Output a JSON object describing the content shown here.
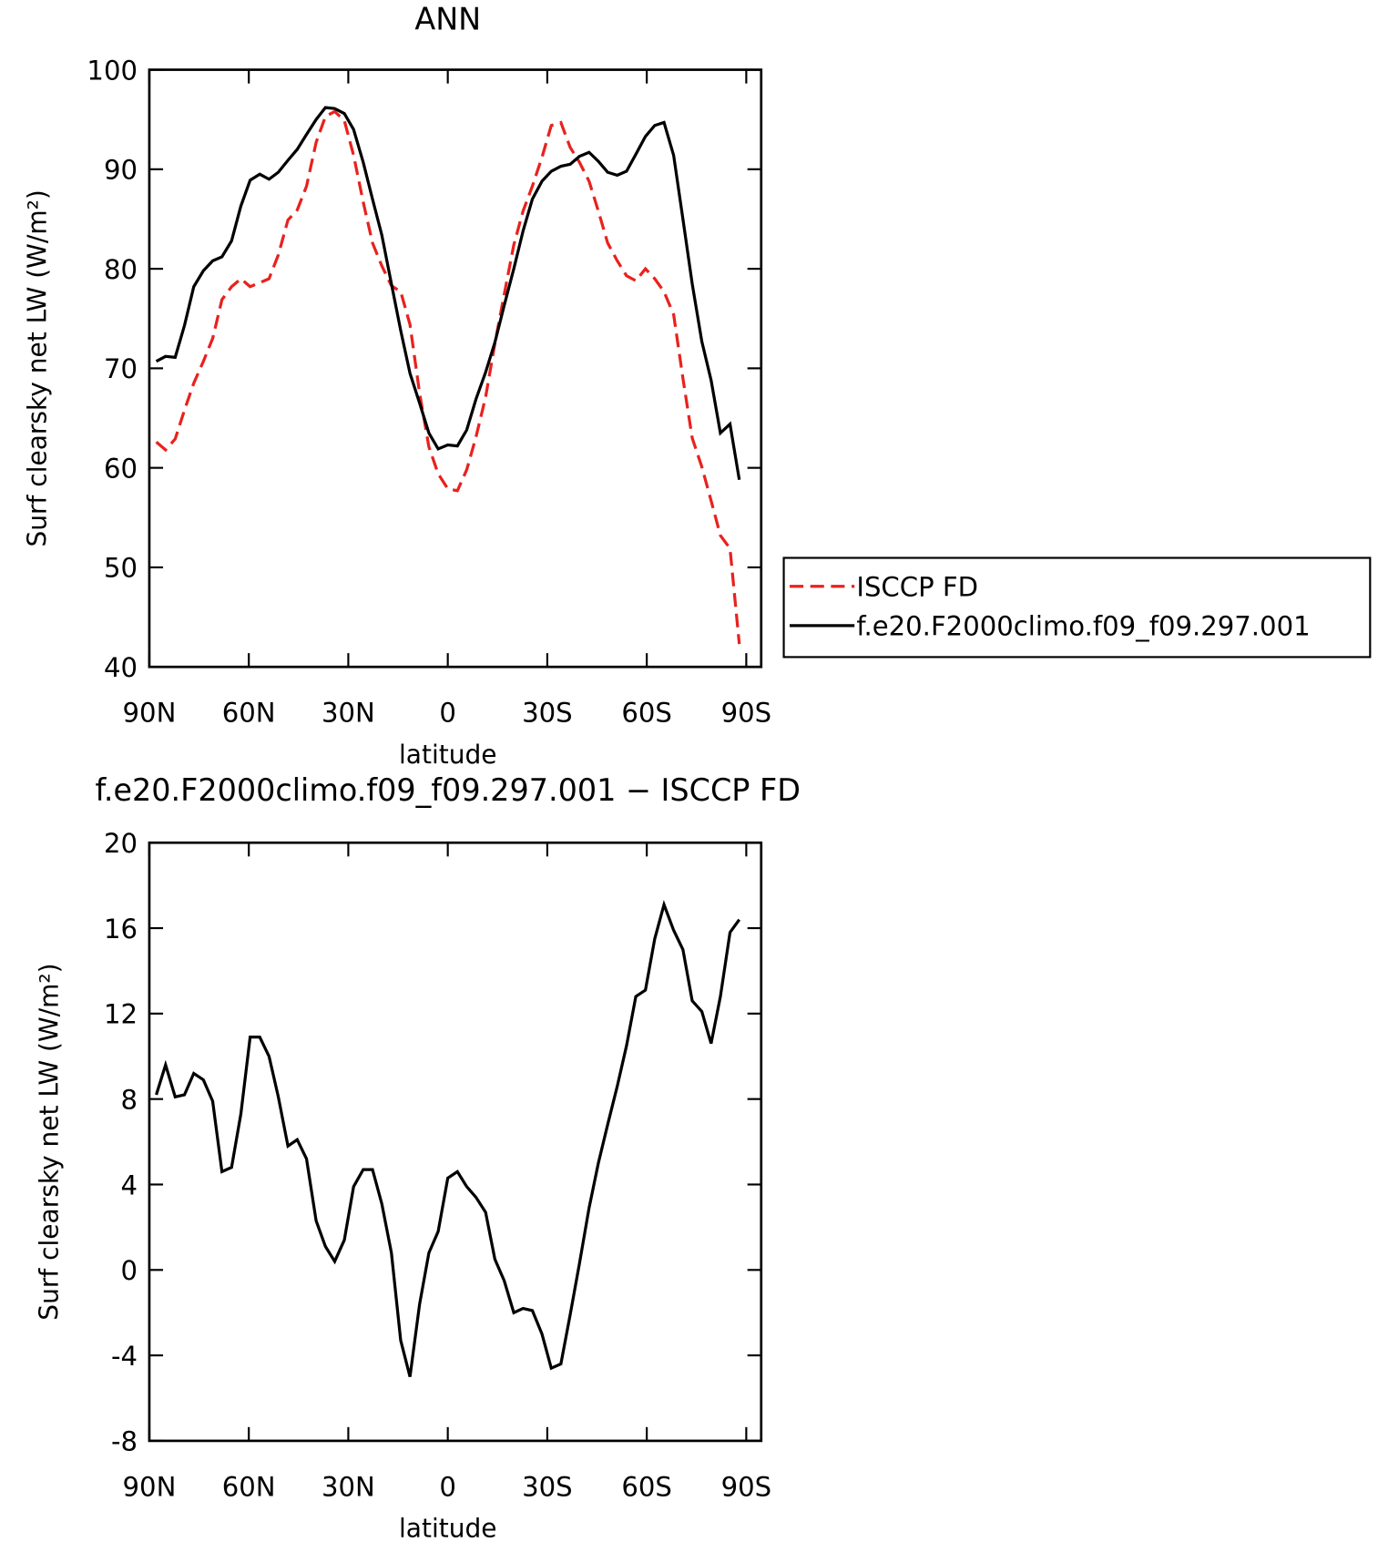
{
  "chart_data": [
    {
      "type": "line",
      "title": "ANN",
      "xlabel": "latitude",
      "ylabel": "Surf clearsky net LW (W/m²)",
      "x": [
        87.9,
        85.1,
        82.2,
        79.4,
        76.6,
        73.7,
        70.9,
        68.1,
        65.2,
        62.4,
        59.6,
        56.7,
        53.9,
        51.1,
        48.2,
        45.4,
        42.6,
        39.7,
        36.9,
        34.1,
        31.2,
        28.4,
        25.5,
        22.7,
        19.9,
        17.0,
        14.2,
        11.4,
        8.5,
        5.7,
        2.9,
        0.0,
        -2.9,
        -5.7,
        -8.5,
        -11.4,
        -14.2,
        -17.0,
        -19.9,
        -22.7,
        -25.5,
        -28.4,
        -31.2,
        -34.1,
        -36.9,
        -39.7,
        -42.6,
        -45.4,
        -48.2,
        -51.1,
        -53.9,
        -56.7,
        -59.6,
        -62.4,
        -65.2,
        -68.1,
        -70.9,
        -73.7,
        -76.6,
        -79.4,
        -82.2,
        -85.1,
        -87.9
      ],
      "series": [
        {
          "name": "ISCCP FD",
          "color": "#e8221e",
          "dash": "dashed",
          "values": [
            62.6,
            61.8,
            62.9,
            65.8,
            68.5,
            70.7,
            73.0,
            76.9,
            78.2,
            79.0,
            78.2,
            78.6,
            79.0,
            81.4,
            84.9,
            85.9,
            88.3,
            92.7,
            95.3,
            95.8,
            94.9,
            91.4,
            86.7,
            82.6,
            80.3,
            78.3,
            77.7,
            74.4,
            67.5,
            62.1,
            59.4,
            57.9,
            57.7,
            59.8,
            63.1,
            67.1,
            72.5,
            77.4,
            82.4,
            85.8,
            88.3,
            91.2,
            94.4,
            94.7,
            92.2,
            90.7,
            88.8,
            85.8,
            82.6,
            80.8,
            79.3,
            78.8,
            80.0,
            79.0,
            77.7,
            75.4,
            69.0,
            63.0,
            60.1,
            56.7,
            53.2,
            51.9,
            42.3
          ]
        },
        {
          "name": "f.e20.F2000climo.f09_f09.297.001",
          "color": "#000000",
          "dash": "solid",
          "values": [
            70.7,
            71.2,
            71.1,
            74.3,
            78.2,
            79.8,
            80.8,
            81.2,
            82.8,
            86.3,
            88.9,
            89.5,
            89.0,
            89.7,
            90.9,
            92.0,
            93.5,
            95.0,
            96.2,
            96.1,
            95.6,
            94.0,
            90.7,
            87.0,
            83.4,
            78.5,
            73.8,
            69.5,
            66.5,
            63.5,
            61.9,
            62.3,
            62.2,
            63.8,
            66.9,
            69.6,
            72.6,
            76.3,
            80.0,
            83.8,
            87.0,
            88.8,
            89.8,
            90.3,
            90.5,
            91.3,
            91.7,
            90.8,
            89.7,
            89.4,
            89.8,
            91.5,
            93.3,
            94.4,
            94.7,
            91.4,
            85.0,
            78.5,
            72.7,
            68.8,
            63.5,
            64.4,
            58.8
          ]
        }
      ],
      "xlim": [
        90,
        -94.5
      ],
      "xticks": [
        {
          "value": 90,
          "label": "90N"
        },
        {
          "value": 60,
          "label": "60N"
        },
        {
          "value": 30,
          "label": "30N"
        },
        0,
        {
          "value": -30,
          "label": "30S"
        },
        {
          "value": -60,
          "label": "60S"
        },
        {
          "value": -90,
          "label": "90S"
        }
      ],
      "ylim": [
        40,
        100
      ],
      "yticks": [
        40,
        50,
        60,
        70,
        80,
        90,
        100
      ],
      "legend": "outside-right"
    },
    {
      "type": "line",
      "title": "f.e20.F2000climo.f09_f09.297.001 − ISCCP FD",
      "xlabel": "latitude",
      "ylabel": "Surf clearsky net LW (W/m²)",
      "x": [
        87.9,
        85.1,
        82.2,
        79.4,
        76.6,
        73.7,
        70.9,
        68.1,
        65.2,
        62.4,
        59.6,
        56.7,
        53.9,
        51.1,
        48.2,
        45.4,
        42.6,
        39.7,
        36.9,
        34.1,
        31.2,
        28.4,
        25.5,
        22.7,
        19.9,
        17.0,
        14.2,
        11.4,
        8.5,
        5.7,
        2.9,
        0.0,
        -2.9,
        -5.7,
        -8.5,
        -11.4,
        -14.2,
        -17.0,
        -19.9,
        -22.7,
        -25.5,
        -28.4,
        -31.2,
        -34.1,
        -36.9,
        -39.7,
        -42.6,
        -45.4,
        -48.2,
        -51.1,
        -53.9,
        -56.7,
        -59.6,
        -62.4,
        -65.2,
        -68.1,
        -70.9,
        -73.7,
        -76.6,
        -79.4,
        -82.2,
        -85.1,
        -87.9
      ],
      "series": [
        {
          "color": "#000000",
          "dash": "solid",
          "values": [
            8.2,
            9.6,
            8.1,
            8.2,
            9.2,
            8.9,
            7.9,
            4.6,
            4.8,
            7.3,
            10.9,
            10.9,
            10.0,
            8.1,
            5.8,
            6.1,
            5.2,
            2.3,
            1.1,
            0.4,
            1.4,
            3.9,
            4.7,
            4.7,
            3.1,
            0.8,
            -3.3,
            -5.0,
            -1.6,
            0.8,
            1.8,
            4.3,
            4.6,
            3.9,
            3.4,
            2.7,
            0.5,
            -0.5,
            -2.0,
            -1.8,
            -1.9,
            -3.0,
            -4.6,
            -4.4,
            -2.1,
            0.3,
            2.9,
            5.0,
            6.8,
            8.6,
            10.5,
            12.8,
            13.1,
            15.5,
            17.1,
            15.9,
            15.0,
            12.6,
            12.1,
            10.6,
            12.8,
            15.8,
            16.4
          ]
        }
      ],
      "xlim": [
        90,
        -94.5
      ],
      "xticks": [
        {
          "value": 90,
          "label": "90N"
        },
        {
          "value": 60,
          "label": "60N"
        },
        {
          "value": 30,
          "label": "30N"
        },
        0,
        {
          "value": -30,
          "label": "30S"
        },
        {
          "value": -60,
          "label": "60S"
        },
        {
          "value": -90,
          "label": "90S"
        }
      ],
      "ylim": [
        -8,
        20
      ],
      "yticks": [
        -8,
        -4,
        0,
        4,
        8,
        12,
        16,
        20
      ]
    }
  ]
}
